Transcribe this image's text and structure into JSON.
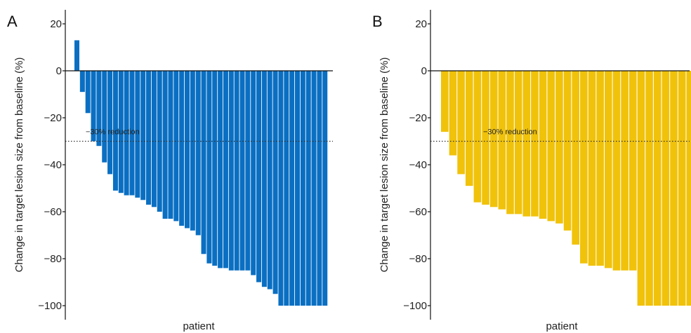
{
  "chart_data": [
    {
      "type": "bar",
      "panel_label": "A",
      "xlabel": "patient",
      "ylabel": "Change in target lesion size from baseline (%)",
      "ylim": [
        -100,
        20
      ],
      "yticks": [
        20,
        0,
        -20,
        -40,
        -60,
        -80,
        -100
      ],
      "grid": false,
      "color": "#0a6fc2",
      "reference_line": {
        "y": -30,
        "label": "−30% reduction",
        "style": "dotted"
      },
      "values": [
        13,
        -9,
        -18,
        -30,
        -32,
        -39,
        -44,
        -51,
        -52,
        -53,
        -53,
        -54,
        -55,
        -57,
        -58,
        -60,
        -63,
        -63,
        -64,
        -66,
        -67,
        -68,
        -70,
        -78,
        -82,
        -83,
        -84,
        -84,
        -85,
        -85,
        -85,
        -85,
        -87,
        -90,
        -92,
        -93,
        -95,
        -100,
        -100,
        -100,
        -100,
        -100,
        -100,
        -100,
        -100,
        -100
      ]
    },
    {
      "type": "bar",
      "panel_label": "B",
      "xlabel": "patient",
      "ylabel": "Change in target lesion size from baseline (%)",
      "ylim": [
        -100,
        20
      ],
      "yticks": [
        20,
        0,
        -20,
        -40,
        -60,
        -80,
        -100
      ],
      "grid": false,
      "color": "#f0c20a",
      "reference_line": {
        "y": -30,
        "label": "−30% reduction",
        "style": "dotted"
      },
      "values": [
        -26,
        -36,
        -44,
        -49,
        -56,
        -57,
        -58,
        -59,
        -61,
        -61,
        -62,
        -62,
        -63,
        -64,
        -65,
        -68,
        -74,
        -82,
        -83,
        -83,
        -84,
        -85,
        -85,
        -85,
        -100,
        -100,
        -100,
        -100,
        -100,
        -100,
        -100
      ]
    }
  ]
}
